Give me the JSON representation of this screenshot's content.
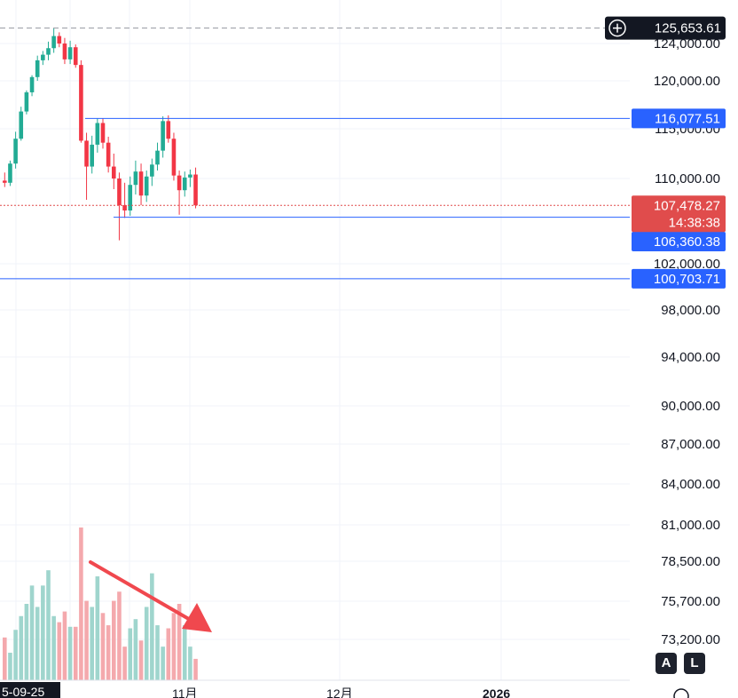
{
  "chart_data": {
    "type": "candlestick",
    "price_axis_ticks": [
      "124,000.00",
      "120,000.00",
      "115,000.00",
      "110,000.00",
      "102,000.00",
      "98,000.00",
      "94,000.00",
      "90,000.00",
      "87,000.00",
      "84,000.00",
      "81,000.00",
      "78,500.00",
      "75,700.00",
      "73,200.00"
    ],
    "price_lines": [
      {
        "value": "125,653.61",
        "style": "dashed",
        "color": "#9598a1"
      },
      {
        "value": "116,077.51",
        "style": "solid",
        "color": "#2962ff"
      },
      {
        "value": "106,360.38",
        "style": "solid",
        "color": "#2962ff"
      },
      {
        "value": "100,703.71",
        "style": "solid",
        "color": "#2962ff"
      }
    ],
    "last_price": {
      "value": "107,478.27",
      "countdown": "14:38:38",
      "color": "#e04c4c"
    },
    "date_labels": [
      "5-09-25",
      "11月",
      "12月",
      "2026"
    ],
    "candles": [
      {
        "o": 109800,
        "h": 110600,
        "l": 109200,
        "c": 109600
      },
      {
        "o": 109600,
        "h": 111800,
        "l": 109300,
        "c": 111500
      },
      {
        "o": 111500,
        "h": 114700,
        "l": 111000,
        "c": 114000
      },
      {
        "o": 114000,
        "h": 117300,
        "l": 113800,
        "c": 116800
      },
      {
        "o": 116800,
        "h": 119000,
        "l": 116500,
        "c": 118800
      },
      {
        "o": 118800,
        "h": 120600,
        "l": 118400,
        "c": 120400
      },
      {
        "o": 120400,
        "h": 122700,
        "l": 120000,
        "c": 122200
      },
      {
        "o": 122200,
        "h": 123200,
        "l": 121700,
        "c": 122800
      },
      {
        "o": 122800,
        "h": 124200,
        "l": 122200,
        "c": 123500
      },
      {
        "o": 123500,
        "h": 125653,
        "l": 123000,
        "c": 124800
      },
      {
        "o": 124800,
        "h": 125200,
        "l": 123600,
        "c": 124000
      },
      {
        "o": 124000,
        "h": 124600,
        "l": 121800,
        "c": 122300
      },
      {
        "o": 122300,
        "h": 124300,
        "l": 121800,
        "c": 123600
      },
      {
        "o": 123600,
        "h": 123900,
        "l": 121400,
        "c": 121700
      },
      {
        "o": 121700,
        "h": 122200,
        "l": 113600,
        "c": 113800
      },
      {
        "o": 113800,
        "h": 114600,
        "l": 108000,
        "c": 111200
      },
      {
        "o": 111200,
        "h": 114300,
        "l": 110500,
        "c": 113400
      },
      {
        "o": 113400,
        "h": 116100,
        "l": 112600,
        "c": 115600
      },
      {
        "o": 115600,
        "h": 116100,
        "l": 113000,
        "c": 113600
      },
      {
        "o": 113600,
        "h": 114200,
        "l": 110600,
        "c": 111200
      },
      {
        "o": 111200,
        "h": 112500,
        "l": 109000,
        "c": 110000
      },
      {
        "o": 110000,
        "h": 110600,
        "l": 104200,
        "c": 107500
      },
      {
        "o": 107500,
        "h": 109600,
        "l": 106300,
        "c": 107000
      },
      {
        "o": 107000,
        "h": 110200,
        "l": 106500,
        "c": 109400
      },
      {
        "o": 109400,
        "h": 111800,
        "l": 108500,
        "c": 110700
      },
      {
        "o": 110700,
        "h": 111500,
        "l": 107500,
        "c": 108400
      },
      {
        "o": 108400,
        "h": 110800,
        "l": 107800,
        "c": 110200
      },
      {
        "o": 110200,
        "h": 112000,
        "l": 109300,
        "c": 111400
      },
      {
        "o": 111400,
        "h": 113600,
        "l": 110800,
        "c": 112800
      },
      {
        "o": 112800,
        "h": 116300,
        "l": 112100,
        "c": 115800
      },
      {
        "o": 115800,
        "h": 116400,
        "l": 113600,
        "c": 114000
      },
      {
        "o": 114000,
        "h": 114600,
        "l": 109800,
        "c": 110300
      },
      {
        "o": 110300,
        "h": 110800,
        "l": 106600,
        "c": 108900
      },
      {
        "o": 108900,
        "h": 110700,
        "l": 108300,
        "c": 110100
      },
      {
        "o": 110100,
        "h": 110900,
        "l": 109200,
        "c": 110400
      },
      {
        "o": 110400,
        "h": 111100,
        "l": 107200,
        "c": 107478
      }
    ],
    "volumes": [
      0.28,
      0.18,
      0.33,
      0.42,
      0.5,
      0.62,
      0.48,
      0.62,
      0.72,
      0.42,
      0.38,
      0.45,
      0.35,
      0.35,
      1.0,
      0.52,
      0.48,
      0.68,
      0.44,
      0.36,
      0.52,
      0.58,
      0.22,
      0.34,
      0.4,
      0.26,
      0.48,
      0.7,
      0.36,
      0.22,
      0.34,
      0.44,
      0.5,
      0.36,
      0.22,
      0.14
    ],
    "colors": {
      "up": "#22ab94",
      "down": "#f23645",
      "up_volume": "#9fd5cd",
      "down_volume": "#f4a9ad",
      "blue_line": "#2962ff",
      "grid": "#f0f3fa",
      "arrow": "#f0484e"
    }
  },
  "buttons": {
    "auto": "A",
    "log": "L"
  }
}
